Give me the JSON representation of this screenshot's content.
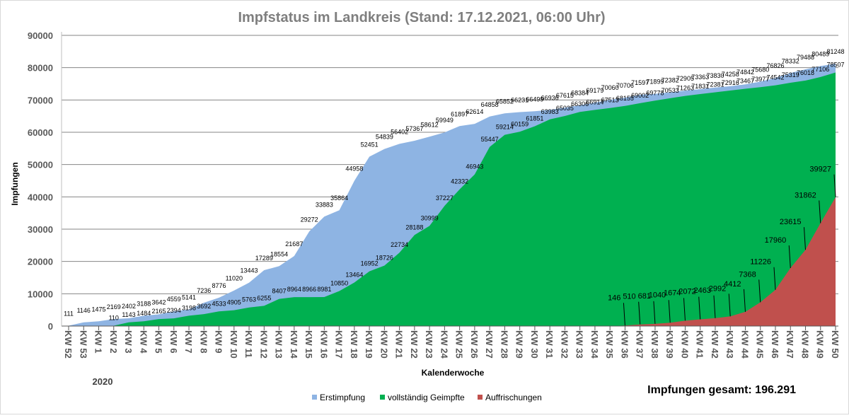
{
  "chart_data": {
    "type": "area",
    "title": "Impfstatus im Landkreis (Stand: 17.12.2021, 06:00 Uhr)",
    "ylabel": "Impfungen",
    "xlabel": "Kalenderwoche",
    "year_label": "2020",
    "total_label": "Impfungen gesamt: 196.291",
    "ylim": [
      0,
      90000
    ],
    "yticks": [
      "0",
      "10000",
      "20000",
      "30000",
      "40000",
      "50000",
      "60000",
      "70000",
      "80000",
      "90000"
    ],
    "legend_position": "bottom",
    "grid": true,
    "categories": [
      "KW 52",
      "KW 53",
      "KW 1",
      "KW 2",
      "KW 3",
      "KW 4",
      "KW 5",
      "KW 6",
      "KW 7",
      "KW 8",
      "KW 9",
      "KW 10",
      "KW 11",
      "KW 12",
      "KW 13",
      "KW 14",
      "KW 15",
      "KW 16",
      "KW 17",
      "KW 18",
      "KW 19",
      "KW 20",
      "KW 21",
      "KW 22",
      "KW 23",
      "KW 24",
      "KW 25",
      "KW 26",
      "KW 27",
      "KW 28",
      "KW 29",
      "KW 30",
      "KW 31",
      "KW 32",
      "KW 33",
      "KW 34",
      "KW 35",
      "KW 36",
      "KW 37",
      "KW 38",
      "KW 39",
      "KW 40",
      "KW 41",
      "KW 42",
      "KW 43",
      "KW 44",
      "KW 45",
      "KW 46",
      "KW 47",
      "KW 48",
      "KW 49",
      "KW 50"
    ],
    "series": [
      {
        "name": "Erstimpfung",
        "color": "#8eb4e3",
        "values": [
          111,
          1146,
          1475,
          2169,
          2402,
          3188,
          3642,
          4559,
          5141,
          7236,
          8776,
          11020,
          13443,
          17289,
          18554,
          21687,
          29272,
          33883,
          35864,
          44958,
          52451,
          54839,
          56402,
          57367,
          58612,
          59949,
          61897,
          62614,
          64858,
          65852,
          66231,
          66499,
          66936,
          67615,
          68384,
          69179,
          70060,
          70706,
          71597,
          71899,
          72382,
          72905,
          73363,
          73830,
          74258,
          74842,
          75680,
          76826,
          78332,
          79488,
          80489,
          81248
        ]
      },
      {
        "name": "vollständig Geimpfte",
        "color": "#00b050",
        "values": [
          0,
          0,
          0,
          110,
          1143,
          1484,
          2165,
          2394,
          3198,
          3692,
          4533,
          4905,
          5763,
          6255,
          8407,
          8964,
          8966,
          8981,
          10850,
          13464,
          16952,
          18726,
          22734,
          28188,
          30999,
          37227,
          42332,
          46943,
          55447,
          59214,
          60159,
          61851,
          63983,
          65035,
          66306,
          66914,
          67513,
          68155,
          69002,
          69778,
          70533,
          71263,
          71831,
          72381,
          72916,
          73467,
          73977,
          74542,
          75319,
          76018,
          77106,
          78507
        ]
      },
      {
        "name": "Auffrischungen",
        "color": "#c0504d",
        "values": [
          0,
          0,
          0,
          0,
          0,
          0,
          0,
          0,
          0,
          0,
          0,
          0,
          0,
          0,
          0,
          0,
          0,
          0,
          0,
          0,
          0,
          0,
          0,
          0,
          0,
          0,
          0,
          0,
          0,
          0,
          0,
          0,
          0,
          0,
          0,
          0,
          0,
          146,
          510,
          681,
          1040,
          1674,
          2072,
          2463,
          2992,
          4412,
          7368,
          11226,
          17960,
          23615,
          31862,
          39927
        ]
      }
    ]
  }
}
